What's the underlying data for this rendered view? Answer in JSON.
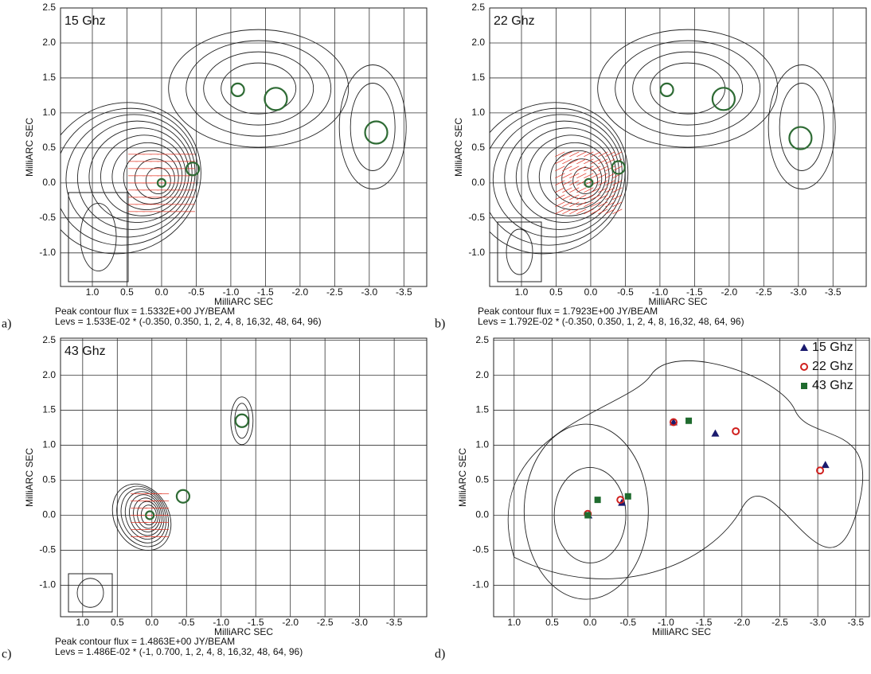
{
  "chart_data": [
    {
      "type": "contour",
      "panel_label": "a)",
      "title": "15 Ghz",
      "xlabel": "MilliARC SEC",
      "ylabel": "MilliARC SEC",
      "notes": [
        "Peak contour flux =  1.5332E+00 JY/BEAM",
        "Levs = 1.533E-02 * (-0.350, 0.350, 1, 2, 4, 8, 16,32, 48, 64, 96)"
      ],
      "xlim": [
        1.46,
        -3.83
      ],
      "ylim": [
        -1.48,
        2.5
      ],
      "xticks": [
        {
          "value": 1,
          "label": "1.0"
        },
        0.5,
        {
          "value": 0,
          "label": "0.0"
        },
        -0.5,
        {
          "value": -1,
          "label": "-1.0"
        },
        -1.5,
        {
          "value": -2,
          "label": "-2.0"
        },
        -2.5,
        {
          "value": -3,
          "label": "-3.0"
        },
        -3.5
      ],
      "yticks": [
        {
          "value": -1,
          "label": "-1.0"
        },
        -0.5,
        {
          "value": 0,
          "label": "0.0"
        },
        0.5,
        {
          "value": 1,
          "label": "1.0"
        },
        1.5,
        {
          "value": 2,
          "label": "2.0"
        },
        2.5
      ],
      "components": {
        "color": "#2e6b34",
        "x": [
          0.0,
          -0.45,
          -1.1,
          -1.65,
          -3.1
        ],
        "y": [
          0.0,
          0.2,
          1.33,
          1.2,
          0.72
        ]
      }
    },
    {
      "type": "contour",
      "panel_label": "b)",
      "title": "22 Ghz",
      "xlabel": "MilliARC SEC",
      "ylabel": "MilliARC SEC",
      "notes": [
        "Peak contour flux =  1.7923E+00 JY/BEAM",
        "Levs = 1.792E-02 * (-0.350, 0.350, 1, 2, 4, 8, 16,32, 48, 64, 96)"
      ],
      "xlim": [
        1.46,
        -3.98
      ],
      "ylim": [
        -1.48,
        2.5
      ],
      "xticks": [
        {
          "value": 1,
          "label": "1.0"
        },
        0.5,
        {
          "value": 0,
          "label": "0.0"
        },
        -0.5,
        {
          "value": -1,
          "label": "-1.0"
        },
        -1.5,
        {
          "value": -2,
          "label": "-2.0"
        },
        -2.5,
        {
          "value": -3,
          "label": "-3.0"
        },
        -3.5
      ],
      "yticks": [
        {
          "value": -1,
          "label": "-1.0"
        },
        -0.5,
        {
          "value": 0,
          "label": "0.0"
        },
        0.5,
        {
          "value": 1,
          "label": "1.0"
        },
        1.5,
        {
          "value": 2,
          "label": "2.0"
        },
        2.5
      ],
      "components": {
        "color": "#2e6b34",
        "x": [
          0.03,
          -0.4,
          -1.1,
          -1.92,
          -3.03
        ],
        "y": [
          0.0,
          0.22,
          1.33,
          1.2,
          0.64
        ]
      }
    },
    {
      "type": "contour",
      "panel_label": "c)",
      "title": "43 Ghz",
      "xlabel": "MilliARC SEC",
      "ylabel": "MilliARC SEC",
      "notes": [
        "Peak contour flux =  1.4863E+00 JY/BEAM",
        "Levs = 1.486E-02 * (-1, 0.700, 1, 2, 4, 8, 16,32, 48, 64, 96)"
      ],
      "xlim": [
        1.32,
        -3.97
      ],
      "ylim": [
        -1.45,
        2.53
      ],
      "xticks": [
        {
          "value": 1,
          "label": "1.0"
        },
        0.5,
        {
          "value": 0,
          "label": "0.0"
        },
        -0.5,
        {
          "value": -1,
          "label": "-1.0"
        },
        -1.5,
        {
          "value": -2,
          "label": "-2.0"
        },
        -2.5,
        {
          "value": -3,
          "label": "-3.0"
        },
        -3.5
      ],
      "yticks": [
        {
          "value": -1,
          "label": "-1.0"
        },
        -0.5,
        {
          "value": 0,
          "label": "0.0"
        },
        0.5,
        {
          "value": 1,
          "label": "1.0"
        },
        1.5,
        {
          "value": 2,
          "label": "2.0"
        },
        2.5
      ],
      "components": {
        "color": "#2e6b34",
        "x": [
          0.03,
          -0.45,
          -1.3
        ],
        "y": [
          0.0,
          0.27,
          1.35
        ]
      }
    },
    {
      "type": "scatter",
      "panel_label": "d)",
      "xlabel": "MilliARC SEC",
      "ylabel": "MilliARC SEC",
      "xlim": [
        1.27,
        -3.68
      ],
      "ylim": [
        -1.45,
        2.53
      ],
      "legend": "upper right",
      "xticks": [
        {
          "value": 1,
          "label": "1.0"
        },
        0.5,
        {
          "value": 0,
          "label": "0.0"
        },
        -0.5,
        {
          "value": -1,
          "label": "-1.0"
        },
        -1.5,
        {
          "value": -2,
          "label": "-2.0"
        },
        -2.5,
        {
          "value": -3,
          "label": "-3.0"
        },
        -3.5
      ],
      "yticks": [
        {
          "value": -1,
          "label": "-1.0"
        },
        -0.5,
        {
          "value": 0,
          "label": "0.0"
        },
        0.5,
        {
          "value": 1,
          "label": "1.0"
        },
        1.5,
        {
          "value": 2,
          "label": "2.0"
        },
        2.5
      ],
      "series": [
        {
          "name": "15 Ghz",
          "marker": "triangle",
          "color": "#1a1a6e",
          "x": [
            0.02,
            -0.42,
            -1.1,
            -1.65,
            -3.1
          ],
          "y": [
            0.0,
            0.18,
            1.33,
            1.17,
            0.72
          ]
        },
        {
          "name": "22 Ghz",
          "marker": "ring",
          "color": "#d0201e",
          "x": [
            0.03,
            -0.4,
            -1.1,
            -1.92,
            -3.03
          ],
          "y": [
            0.02,
            0.22,
            1.33,
            1.2,
            0.64
          ]
        },
        {
          "name": "43 Ghz",
          "marker": "square",
          "color": "#1f6b2e",
          "x": [
            0.03,
            -0.1,
            -0.5,
            -1.3
          ],
          "y": [
            0.0,
            0.22,
            0.27,
            1.35
          ]
        }
      ]
    }
  ]
}
